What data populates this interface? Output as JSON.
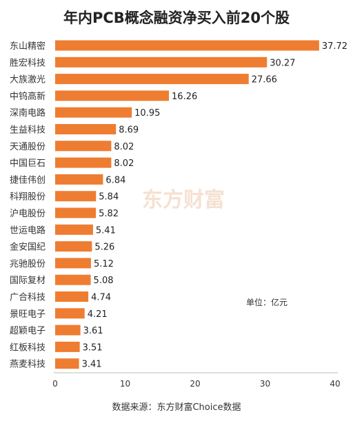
{
  "chart_data": {
    "type": "bar",
    "orientation": "horizontal",
    "title": "年内PCB概念融资净买入前20个股",
    "unit_label": "单位：亿元",
    "source": "数据来源：东方财富Choice数据",
    "watermark": "东方财富",
    "bar_color": "#ee7d31",
    "categories": [
      "东山精密",
      "胜宏科技",
      "大族激光",
      "中钨高新",
      "深南电路",
      "生益科技",
      "天通股份",
      "中国巨石",
      "捷佳伟创",
      "科翔股份",
      "沪电股份",
      "世运电路",
      "金安国纪",
      "兆驰股份",
      "国际复材",
      "广合科技",
      "景旺电子",
      "超颖电子",
      "红板科技",
      "燕麦科技"
    ],
    "values": [
      37.72,
      30.27,
      27.66,
      16.26,
      10.95,
      8.69,
      8.02,
      8.02,
      6.84,
      5.84,
      5.82,
      5.41,
      5.26,
      5.12,
      5.08,
      4.74,
      4.21,
      3.61,
      3.51,
      3.41
    ],
    "value_labels": [
      "37.72",
      "30.27",
      "27.66",
      "16.26",
      "10.95",
      "8.69",
      "8.02",
      "8.02",
      "6.84",
      "5.84",
      "5.82",
      "5.41",
      "5.26",
      "5.12",
      "5.08",
      "4.74",
      "4.21",
      "3.61",
      "3.51",
      "3.41"
    ],
    "xlim": [
      0,
      40
    ],
    "xticks": [
      "0",
      "10",
      "20",
      "30",
      "40"
    ],
    "grid": false
  }
}
